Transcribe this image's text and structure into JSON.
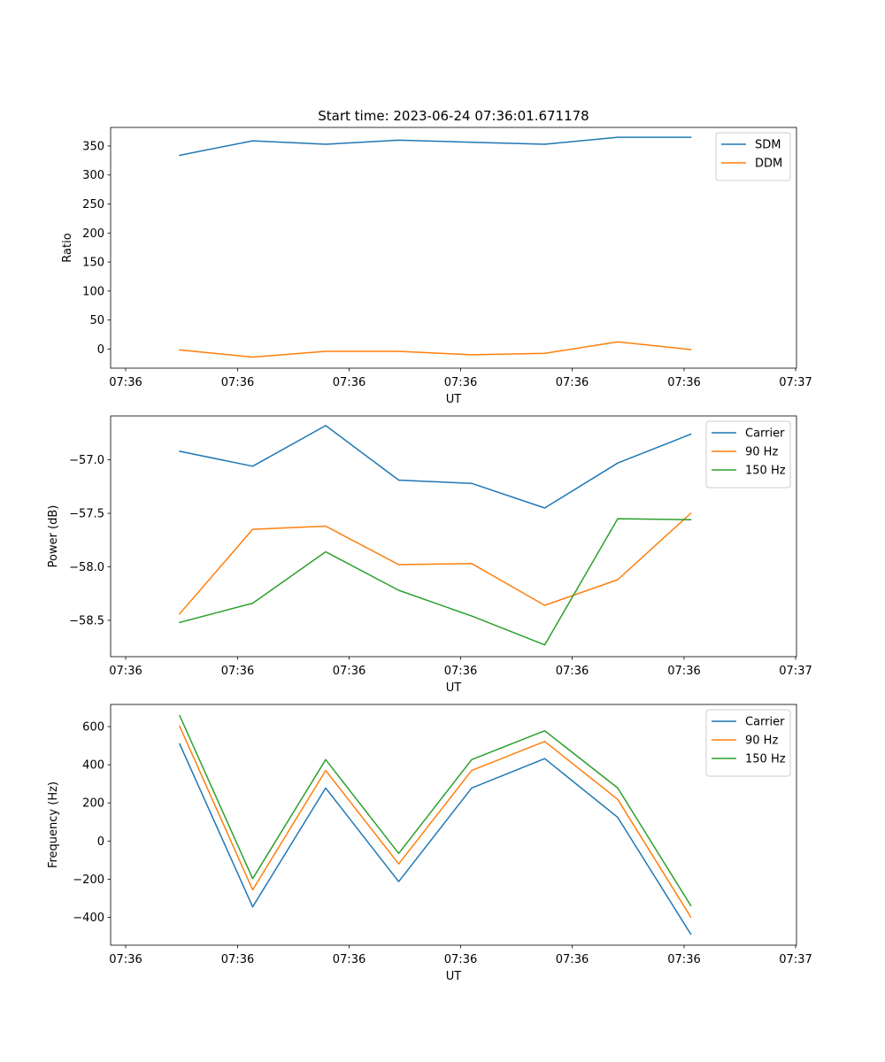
{
  "title": "Start time: 2023-06-24 07:36:01.671178",
  "chart_data": [
    {
      "type": "line",
      "xlabel": "UT",
      "ylabel": "Ratio",
      "x_tick_labels": [
        "07:36",
        "07:36",
        "07:36",
        "07:36",
        "07:36",
        "07:36",
        "07:37"
      ],
      "y_ticks": [
        0,
        50,
        100,
        150,
        200,
        250,
        300,
        350
      ],
      "y_tick_labels": [
        "0",
        "50",
        "100",
        "150",
        "200",
        "250",
        "300",
        "350"
      ],
      "ylim": [
        -33,
        382
      ],
      "legend_position": "top-right",
      "grid": false,
      "series": [
        {
          "name": "SDM",
          "color": "#1f77b4",
          "values": [
            334,
            359,
            353,
            360,
            356.5,
            353,
            365,
            365
          ]
        },
        {
          "name": "DDM",
          "color": "#ff7f0e",
          "values": [
            -1.5,
            -14,
            -4,
            -4,
            -10,
            -7.5,
            12.5,
            -1
          ]
        }
      ]
    },
    {
      "type": "line",
      "xlabel": "UT",
      "ylabel": "Power (dB)",
      "x_tick_labels": [
        "07:36",
        "07:36",
        "07:36",
        "07:36",
        "07:36",
        "07:36",
        "07:37"
      ],
      "y_ticks": [
        -58.5,
        -58.0,
        -57.5,
        -57.0
      ],
      "y_tick_labels": [
        "−58.5",
        "−58.0",
        "−57.5",
        "−57.0"
      ],
      "ylim": [
        -58.84,
        -56.59
      ],
      "legend_position": "top-right",
      "grid": false,
      "series": [
        {
          "name": "Carrier",
          "color": "#1f77b4",
          "values": [
            -56.92,
            -57.06,
            -56.68,
            -57.19,
            -57.22,
            -57.45,
            -57.03,
            -56.76
          ]
        },
        {
          "name": "90 Hz",
          "color": "#ff7f0e",
          "values": [
            -58.44,
            -57.65,
            -57.62,
            -57.98,
            -57.97,
            -58.36,
            -58.12,
            -57.5
          ]
        },
        {
          "name": "150 Hz",
          "color": "#2ca02c",
          "values": [
            -58.52,
            -58.34,
            -57.86,
            -58.22,
            -58.46,
            -58.73,
            -57.55,
            -57.56
          ]
        }
      ]
    },
    {
      "type": "line",
      "xlabel": "UT",
      "ylabel": "Frequency (Hz)",
      "x_tick_labels": [
        "07:36",
        "07:36",
        "07:36",
        "07:36",
        "07:36",
        "07:36",
        "07:37"
      ],
      "y_ticks": [
        -400,
        -200,
        0,
        200,
        400,
        600
      ],
      "y_tick_labels": [
        "−400",
        "−200",
        "0",
        "200",
        "400",
        "600"
      ],
      "ylim": [
        -546,
        716
      ],
      "legend_position": "top-right",
      "grid": false,
      "series": [
        {
          "name": "Carrier",
          "color": "#1f77b4",
          "values": [
            509,
            -345,
            278,
            -213,
            278,
            432,
            124,
            -488
          ]
        },
        {
          "name": "90 Hz",
          "color": "#ff7f0e",
          "values": [
            602,
            -256,
            370,
            -120,
            370,
            522,
            218,
            -398
          ]
        },
        {
          "name": "150 Hz",
          "color": "#2ca02c",
          "values": [
            658,
            -197,
            427,
            -65,
            427,
            578,
            278,
            -338
          ]
        }
      ]
    }
  ]
}
